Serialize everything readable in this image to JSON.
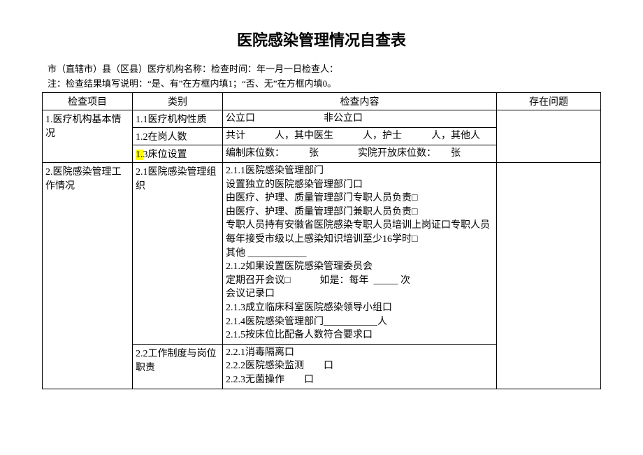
{
  "title": "医院感染管理情况自查表",
  "header": {
    "line1": "市（直辖市）县（区县）医疗机构名称：检查时间：年一月一日检查人：",
    "line2": "注：检查结果填写说明：“是、有”在方框内填1；“否、无”在方框内填0。"
  },
  "columns": {
    "item": "检查项目",
    "category": "类别",
    "content": "检查内容",
    "problem": "存在问题"
  },
  "rows": [
    {
      "item": "1.医疗机构基本情况",
      "item_rowspan": 3,
      "sub": [
        {
          "cat": "1.1医疗机构性质",
          "content": "公立口　　　　　　　非公立口"
        },
        {
          "cat": "1.2在岗人数",
          "content": "共计　　　人，其中医生　　　人，护士　　　人，其他人"
        },
        {
          "cat_prefix_hl": "1.",
          "cat_rest": "3床位设置",
          "content": "编制床位数：　　　张　　　　实院开放床位数：　　张"
        }
      ]
    },
    {
      "item": "2.医院感染管理工作情况",
      "item_rowspan": 2,
      "sub": [
        {
          "cat": "2.1医院感染管理组织",
          "content_lines": [
            "2.1.1医院感染管理部门",
            "设置独立的医院感染管理部门口",
            "由医疗、护理、质量管理部门专职人员负责□",
            "由医疗、护理、质量管理部门兼职人员负责□",
            "专职人员持有安徽省医院感染专职人员培训上岗证口专职人员每年接受市级以上感染知识培训至少16学时□",
            "其他 ____________",
            "2.1.2如果设置医院感染管理委员会",
            "定期召开会议□　　　如是：每年  _____ 次",
            "会议记录口",
            "2.1.3成立临床科室医院感染领导小组口",
            "2.1.4医院感染管理部门___________人",
            "2.1.5按床位比配备人数符合要求口"
          ]
        },
        {
          "cat": "2.2工作制度与岗位职责",
          "content_lines": [
            "2.2.1消毒隔离口",
            "2.2.2医院感染监测　　口",
            "2.2.3无菌操作　　口"
          ]
        }
      ]
    }
  ]
}
